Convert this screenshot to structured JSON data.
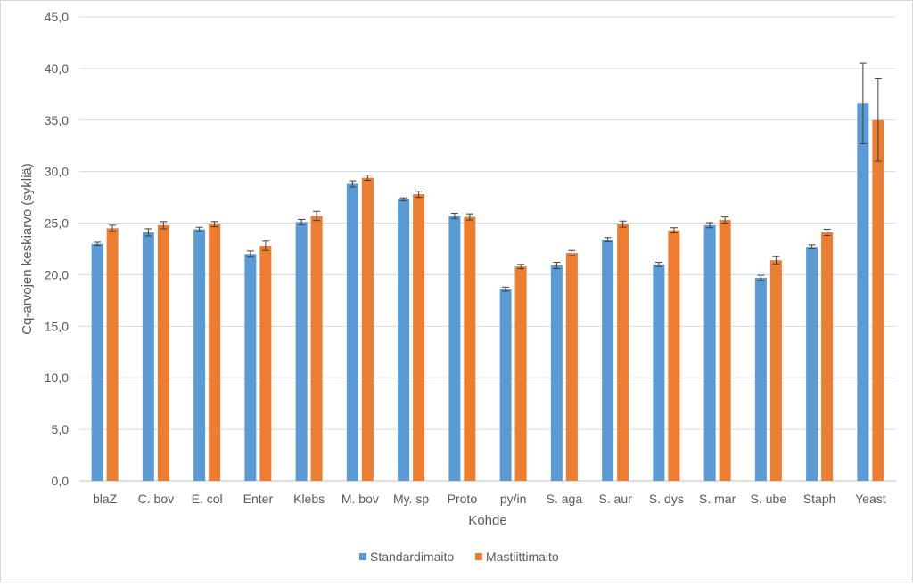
{
  "chart_data": {
    "type": "bar",
    "title": "",
    "xlabel": "Kohde",
    "ylabel": "Cq-arvojen keskiarvo (sykliä)",
    "ylim": [
      0,
      45
    ],
    "ytick_step": 5,
    "ytick_labels": [
      "0,0",
      "5,0",
      "10,0",
      "15,0",
      "20,0",
      "25,0",
      "30,0",
      "35,0",
      "40,0",
      "45,0"
    ],
    "grid": true,
    "legend_position": "bottom",
    "categories": [
      "blaZ",
      "C. bov",
      "E. col",
      "Enter",
      "Klebs",
      "M. bov",
      "My. sp",
      "Proto",
      "py/in",
      "S. aga",
      "S. aur",
      "S. dys",
      "S. mar",
      "S. ube",
      "Staph",
      "Yeast"
    ],
    "series": [
      {
        "name": "Standardimaito",
        "color": "#5b9bd5",
        "values": [
          23.0,
          24.1,
          24.4,
          22.0,
          25.1,
          28.8,
          27.3,
          25.7,
          18.6,
          20.9,
          23.4,
          21.0,
          24.8,
          19.7,
          22.7,
          36.6
        ],
        "errors": [
          0.15,
          0.35,
          0.2,
          0.3,
          0.25,
          0.3,
          0.15,
          0.25,
          0.2,
          0.3,
          0.2,
          0.2,
          0.25,
          0.25,
          0.2,
          3.9
        ]
      },
      {
        "name": "Mastiittimaito",
        "color": "#ed7d31",
        "values": [
          24.5,
          24.8,
          24.9,
          22.8,
          25.7,
          29.4,
          27.8,
          25.6,
          20.8,
          22.1,
          24.9,
          24.3,
          25.3,
          21.4,
          24.1,
          35.0
        ],
        "errors": [
          0.3,
          0.35,
          0.25,
          0.45,
          0.45,
          0.25,
          0.3,
          0.3,
          0.2,
          0.25,
          0.3,
          0.25,
          0.3,
          0.35,
          0.3,
          4.0
        ]
      }
    ]
  }
}
